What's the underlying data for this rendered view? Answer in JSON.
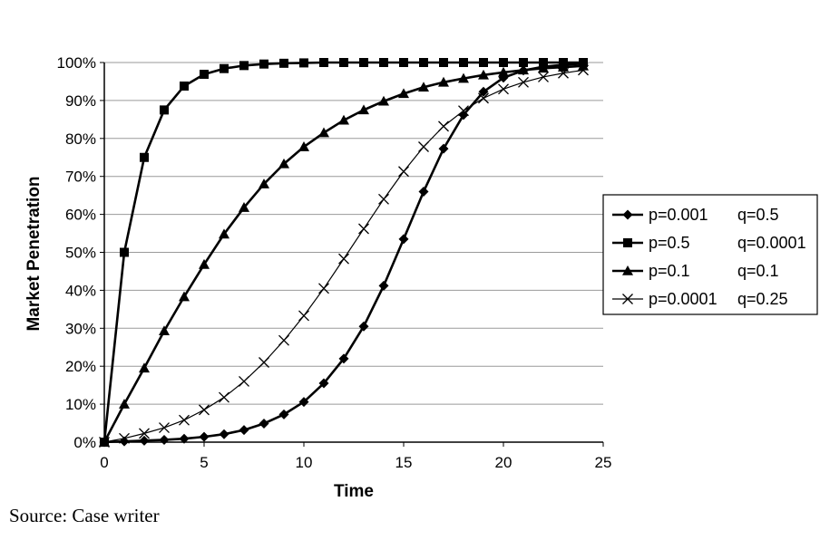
{
  "chart_data": {
    "type": "line",
    "xlabel": "Time",
    "ylabel": "Market Penetration",
    "xlim": [
      0,
      25
    ],
    "ylim": [
      0,
      1
    ],
    "x_ticks": [
      "0",
      "5",
      "10",
      "15",
      "20",
      "25"
    ],
    "y_ticks": [
      "0%",
      "10%",
      "20%",
      "30%",
      "40%",
      "50%",
      "60%",
      "70%",
      "80%",
      "90%",
      "100%"
    ],
    "grid": "horizontal",
    "legend_position": "right",
    "series": [
      {
        "name": "p=0.001",
        "name2": "q=0.5",
        "marker": "diamond",
        "line_color": "#000000",
        "x": [
          0,
          1,
          2,
          3,
          4,
          5,
          6,
          7,
          8,
          9,
          10,
          11,
          12,
          13,
          14,
          15,
          16,
          17,
          18,
          19,
          20,
          21,
          22,
          23,
          24
        ],
        "y": [
          0,
          0.002,
          0.004,
          0.006,
          0.009,
          0.014,
          0.021,
          0.032,
          0.049,
          0.073,
          0.106,
          0.155,
          0.22,
          0.305,
          0.412,
          0.535,
          0.66,
          0.773,
          0.862,
          0.923,
          0.96,
          0.979,
          0.989,
          0.994,
          0.997
        ]
      },
      {
        "name": "p=0.5",
        "name2": "q=0.0001",
        "marker": "square",
        "line_color": "#000000",
        "x": [
          0,
          1,
          2,
          3,
          4,
          5,
          6,
          7,
          8,
          9,
          10,
          11,
          12,
          13,
          14,
          15,
          16,
          17,
          18,
          19,
          20,
          21,
          22,
          23,
          24
        ],
        "y": [
          0,
          0.5,
          0.75,
          0.875,
          0.938,
          0.969,
          0.984,
          0.992,
          0.996,
          0.998,
          0.999,
          1,
          1,
          1,
          1,
          1,
          1,
          1,
          1,
          1,
          1,
          1,
          1,
          1,
          1
        ]
      },
      {
        "name": "p=0.1",
        "name2": "q=0.1",
        "marker": "triangle",
        "line_color": "#000000",
        "x": [
          0,
          1,
          2,
          3,
          4,
          5,
          6,
          7,
          8,
          9,
          10,
          11,
          12,
          13,
          14,
          15,
          16,
          17,
          18,
          19,
          20,
          21,
          22,
          23,
          24
        ],
        "y": [
          0,
          0.1,
          0.195,
          0.293,
          0.383,
          0.468,
          0.548,
          0.618,
          0.68,
          0.733,
          0.778,
          0.815,
          0.848,
          0.875,
          0.898,
          0.918,
          0.935,
          0.948,
          0.958,
          0.967,
          0.974,
          0.98,
          0.985,
          0.988,
          0.991
        ]
      },
      {
        "name": "p=0.0001",
        "name2": "q=0.25",
        "marker": "x",
        "line_color": "#000000",
        "x": [
          0,
          1,
          2,
          3,
          4,
          5,
          6,
          7,
          8,
          9,
          10,
          11,
          12,
          13,
          14,
          15,
          16,
          17,
          18,
          19,
          20,
          21,
          22,
          23,
          24
        ],
        "y": [
          0,
          0.01,
          0.023,
          0.038,
          0.058,
          0.085,
          0.118,
          0.16,
          0.21,
          0.268,
          0.333,
          0.405,
          0.483,
          0.562,
          0.64,
          0.713,
          0.778,
          0.832,
          0.873,
          0.906,
          0.93,
          0.948,
          0.962,
          0.972,
          0.98
        ]
      }
    ]
  },
  "source": "Source: Case writer"
}
